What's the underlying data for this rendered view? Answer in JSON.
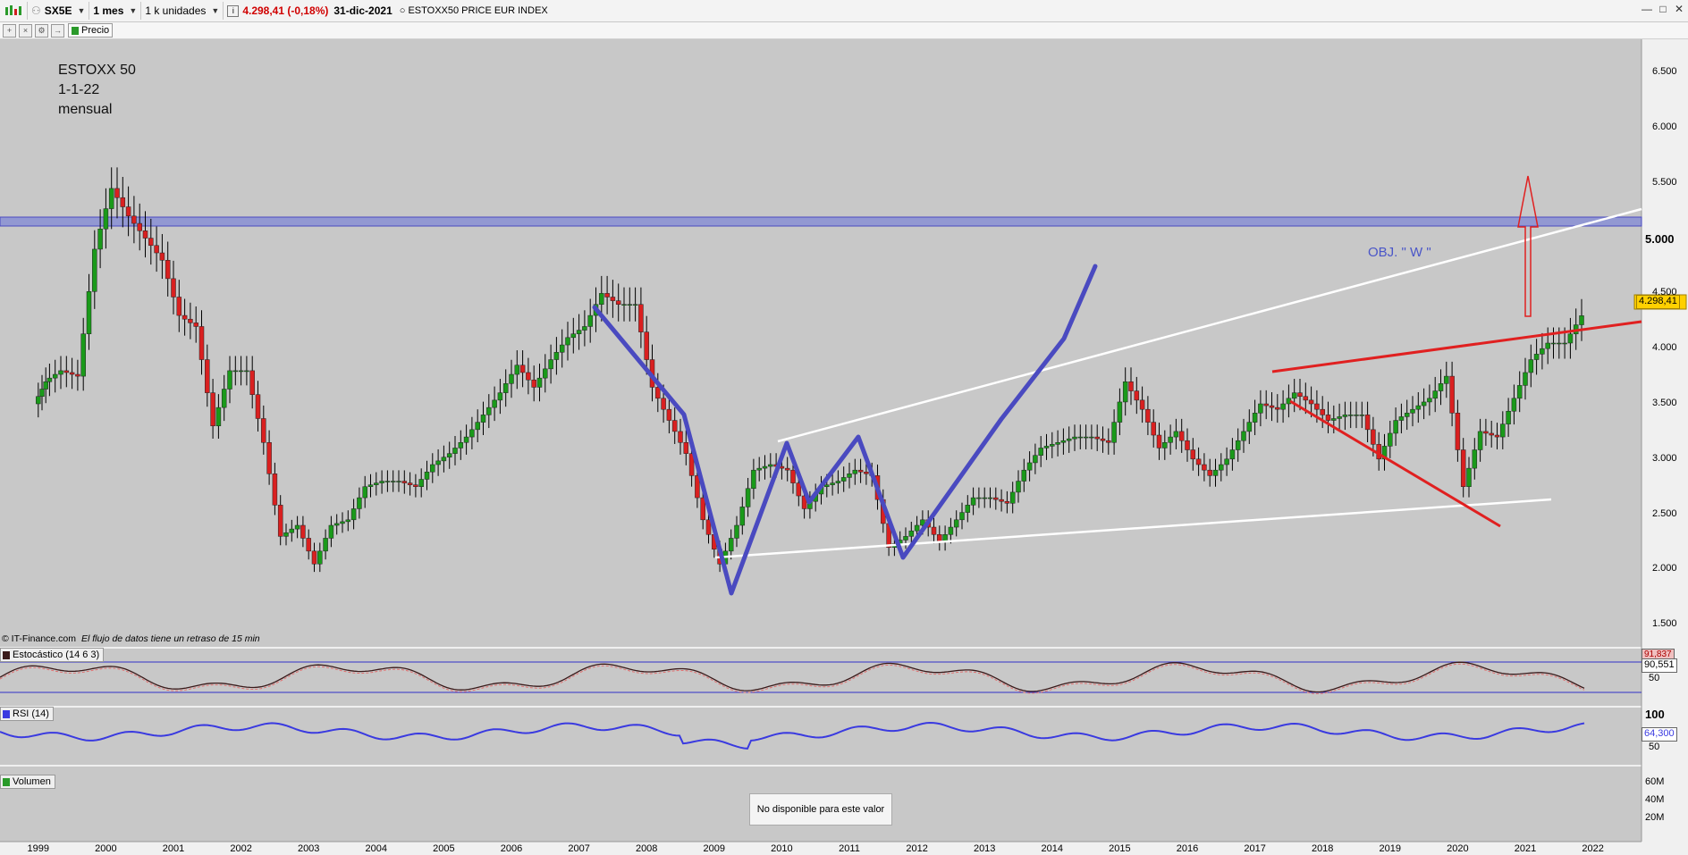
{
  "toolbar": {
    "symbol": "SX5E",
    "period": "1 mes",
    "units": "1 k unidades",
    "price_change": "4.298,41 (-0,18%)",
    "date": "31-dic-2021",
    "instrument": "ESTOXX50 PRICE EUR INDEX",
    "legend_price": "Precio"
  },
  "annotation": {
    "line1": "ESTOXX 50",
    "line2": "1-1-22",
    "line3": "mensual"
  },
  "obj_label": "OBJ. \" W \"",
  "credit": {
    "source": "© IT-Finance.com",
    "notice": "El flujo de datos tiene un retraso de 15 min"
  },
  "panes": {
    "stochastic": {
      "label": "Estocástico (14 6 3)",
      "value": "90,551",
      "value2": "91,837",
      "tick": "50"
    },
    "rsi": {
      "label": "RSI (14)",
      "value": "64,300",
      "tick_top": "100",
      "tick_mid": "50"
    },
    "volume": {
      "label": "Volumen",
      "ticks": [
        "60M",
        "40M",
        "20M"
      ],
      "no_data": "No disponible para este valor"
    }
  },
  "price_tag": "4.298,41",
  "colors": {
    "up": "#1a9a1a",
    "down": "#d92020",
    "white_lines": "#ffffff",
    "blue_w": "#4a4ac0",
    "red_lines": "#e02020",
    "rsi_line": "#3a3ae0",
    "chart_bg": "#c8c8c8"
  },
  "chart_data": {
    "type": "line",
    "y_ticks": [
      "6.500",
      "6.000",
      "5.500",
      "5.000",
      "4.500",
      "4.000",
      "3.500",
      "3.000",
      "2.500",
      "2.000",
      "1.500"
    ],
    "x_ticks": [
      "1999",
      "2000",
      "2001",
      "2002",
      "2003",
      "2004",
      "2005",
      "2006",
      "2007",
      "2008",
      "2009",
      "2010",
      "2011",
      "2012",
      "2013",
      "2014",
      "2015",
      "2016",
      "2017",
      "2018",
      "2019",
      "2020",
      "2021",
      "2022"
    ],
    "ylim": [
      1300,
      6800
    ],
    "series": [
      {
        "points": [
          [
            "1999-01",
            3500
          ],
          [
            "1999-03",
            3700
          ],
          [
            "1999-06",
            3800
          ],
          [
            "1999-09",
            3750
          ],
          [
            "1999-12",
            4900
          ],
          [
            "2000-03",
            5450
          ],
          [
            "2000-06",
            5200
          ],
          [
            "2000-09",
            5000
          ],
          [
            "2000-12",
            4800
          ],
          [
            "2001-03",
            4300
          ],
          [
            "2001-06",
            4200
          ],
          [
            "2001-09",
            3300
          ],
          [
            "2001-12",
            3800
          ],
          [
            "2002-03",
            3800
          ],
          [
            "2002-06",
            3150
          ],
          [
            "2002-09",
            2300
          ],
          [
            "2002-12",
            2400
          ],
          [
            "2003-03",
            2050
          ],
          [
            "2003-06",
            2400
          ],
          [
            "2003-09",
            2450
          ],
          [
            "2003-12",
            2750
          ],
          [
            "2004-03",
            2800
          ],
          [
            "2004-06",
            2800
          ],
          [
            "2004-09",
            2750
          ],
          [
            "2004-12",
            2950
          ],
          [
            "2005-03",
            3050
          ],
          [
            "2005-06",
            3200
          ],
          [
            "2005-09",
            3400
          ],
          [
            "2005-12",
            3600
          ],
          [
            "2006-03",
            3850
          ],
          [
            "2006-06",
            3650
          ],
          [
            "2006-09",
            3900
          ],
          [
            "2006-12",
            4100
          ],
          [
            "2007-03",
            4200
          ],
          [
            "2007-06",
            4500
          ],
          [
            "2007-09",
            4400
          ],
          [
            "2007-12",
            4400
          ],
          [
            "2008-03",
            3650
          ],
          [
            "2008-06",
            3350
          ],
          [
            "2008-09",
            3050
          ],
          [
            "2008-12",
            2450
          ],
          [
            "2009-03",
            2050
          ],
          [
            "2009-06",
            2400
          ],
          [
            "2009-09",
            2900
          ],
          [
            "2009-12",
            2950
          ],
          [
            "2010-03",
            2900
          ],
          [
            "2010-06",
            2550
          ],
          [
            "2010-09",
            2750
          ],
          [
            "2010-12",
            2800
          ],
          [
            "2011-03",
            2900
          ],
          [
            "2011-06",
            2850
          ],
          [
            "2011-09",
            2200
          ],
          [
            "2011-12",
            2300
          ],
          [
            "2012-03",
            2450
          ],
          [
            "2012-06",
            2250
          ],
          [
            "2012-09",
            2450
          ],
          [
            "2012-12",
            2650
          ],
          [
            "2013-03",
            2650
          ],
          [
            "2013-06",
            2600
          ],
          [
            "2013-09",
            2900
          ],
          [
            "2013-12",
            3100
          ],
          [
            "2014-03",
            3150
          ],
          [
            "2014-06",
            3200
          ],
          [
            "2014-09",
            3200
          ],
          [
            "2014-12",
            3150
          ],
          [
            "2015-03",
            3700
          ],
          [
            "2015-06",
            3450
          ],
          [
            "2015-09",
            3100
          ],
          [
            "2015-12",
            3250
          ],
          [
            "2016-03",
            3000
          ],
          [
            "2016-06",
            2850
          ],
          [
            "2016-09",
            3000
          ],
          [
            "2016-12",
            3250
          ],
          [
            "2017-03",
            3500
          ],
          [
            "2017-06",
            3450
          ],
          [
            "2017-09",
            3600
          ],
          [
            "2017-12",
            3500
          ],
          [
            "2018-03",
            3350
          ],
          [
            "2018-06",
            3400
          ],
          [
            "2018-09",
            3400
          ],
          [
            "2018-12",
            3000
          ],
          [
            "2019-03",
            3350
          ],
          [
            "2019-06",
            3450
          ],
          [
            "2019-09",
            3550
          ],
          [
            "2019-12",
            3750
          ],
          [
            "2020-03",
            2750
          ],
          [
            "2020-06",
            3250
          ],
          [
            "2020-09",
            3200
          ],
          [
            "2020-12",
            3550
          ],
          [
            "2021-03",
            3900
          ],
          [
            "2021-06",
            4050
          ],
          [
            "2021-09",
            4050
          ],
          [
            "2021-12",
            4298
          ]
        ]
      }
    ]
  }
}
